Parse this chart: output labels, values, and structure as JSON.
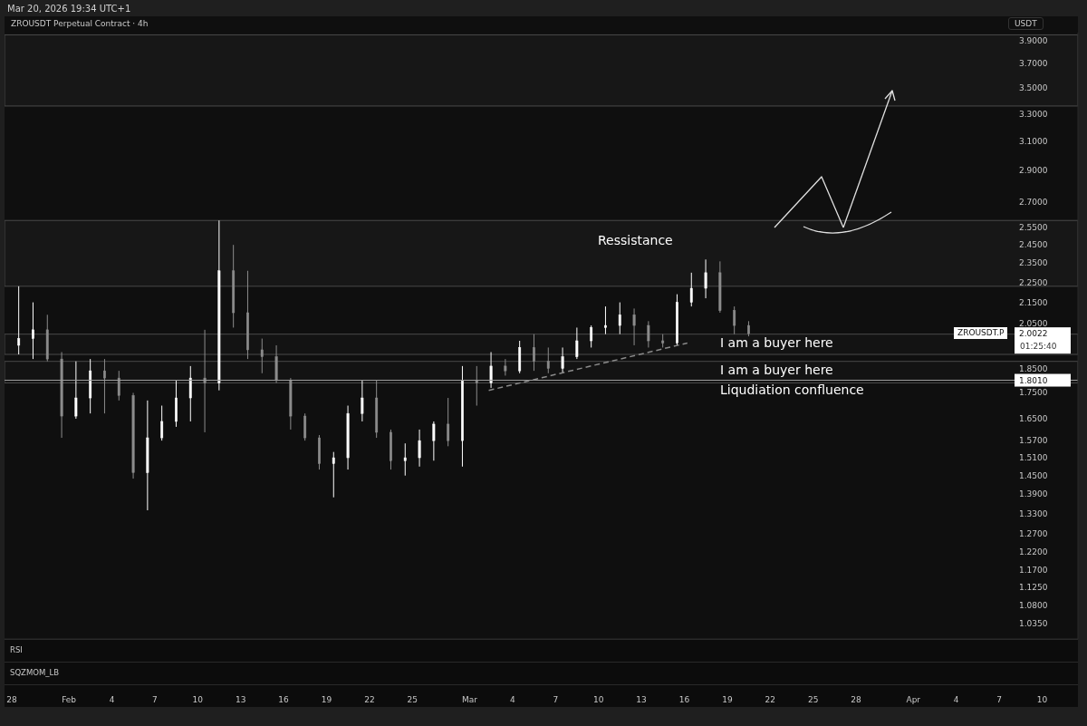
{
  "chart_data": {
    "type": "candlestick",
    "title": "ZROUSDT Perpetual Contract · 4h",
    "subtitle": "Mar 20, 2026 19:34 UTC+1",
    "ylabel": "USDT",
    "log": "y",
    "x": [
      "2026-01-28T12:00",
      "2026-01-29T12:00",
      "2026-01-30T12:00",
      "2026-01-31T12:00",
      "2026-02-01T12:00",
      "2026-02-02T12:00",
      "2026-02-03T12:00",
      "2026-02-04T12:00",
      "2026-02-05T12:00",
      "2026-02-06T12:00",
      "2026-02-07T12:00",
      "2026-02-08T12:00",
      "2026-02-09T12:00",
      "2026-02-10T12:00",
      "2026-02-11T12:00",
      "2026-02-12T12:00",
      "2026-02-13T12:00",
      "2026-02-14T12:00",
      "2026-02-15T12:00",
      "2026-02-16T12:00",
      "2026-02-17T12:00",
      "2026-02-18T12:00",
      "2026-02-19T12:00",
      "2026-02-20T12:00",
      "2026-02-21T12:00",
      "2026-02-22T12:00",
      "2026-02-23T12:00",
      "2026-02-24T12:00",
      "2026-02-25T12:00",
      "2026-02-26T12:00",
      "2026-02-27T12:00",
      "2026-02-28T12:00",
      "2026-03-01T12:00",
      "2026-03-02T12:00",
      "2026-03-03T12:00",
      "2026-03-04T12:00",
      "2026-03-05T12:00",
      "2026-03-06T12:00",
      "2026-03-07T12:00",
      "2026-03-08T12:00",
      "2026-03-09T12:00",
      "2026-03-10T12:00",
      "2026-03-11T12:00",
      "2026-03-12T12:00",
      "2026-03-13T12:00",
      "2026-03-14T12:00",
      "2026-03-15T12:00",
      "2026-03-16T12:00",
      "2026-03-17T12:00",
      "2026-03-18T12:00",
      "2026-03-19T12:00",
      "2026-03-20T12:00"
    ],
    "ohlc": [
      [
        1.95,
        2.23,
        1.91,
        1.98
      ],
      [
        1.98,
        2.15,
        1.89,
        2.02
      ],
      [
        2.02,
        2.09,
        1.88,
        1.89
      ],
      [
        1.89,
        1.92,
        1.58,
        1.66
      ],
      [
        1.66,
        1.88,
        1.65,
        1.73
      ],
      [
        1.73,
        1.89,
        1.67,
        1.84
      ],
      [
        1.84,
        1.89,
        1.67,
        1.81
      ],
      [
        1.81,
        1.84,
        1.72,
        1.74
      ],
      [
        1.74,
        1.75,
        1.44,
        1.46
      ],
      [
        1.46,
        1.72,
        1.34,
        1.58
      ],
      [
        1.58,
        1.7,
        1.57,
        1.64
      ],
      [
        1.64,
        1.8,
        1.62,
        1.73
      ],
      [
        1.73,
        1.86,
        1.64,
        1.81
      ],
      [
        1.81,
        2.02,
        1.6,
        1.79
      ],
      [
        1.79,
        2.59,
        1.76,
        2.31
      ],
      [
        2.31,
        2.45,
        2.03,
        2.1
      ],
      [
        2.1,
        2.31,
        1.89,
        1.93
      ],
      [
        1.93,
        1.98,
        1.83,
        1.9
      ],
      [
        1.9,
        1.95,
        1.79,
        1.8
      ],
      [
        1.8,
        1.81,
        1.61,
        1.66
      ],
      [
        1.66,
        1.67,
        1.57,
        1.58
      ],
      [
        1.58,
        1.59,
        1.47,
        1.49
      ],
      [
        1.49,
        1.53,
        1.38,
        1.51
      ],
      [
        1.51,
        1.7,
        1.47,
        1.67
      ],
      [
        1.67,
        1.8,
        1.64,
        1.73
      ],
      [
        1.73,
        1.8,
        1.58,
        1.6
      ],
      [
        1.6,
        1.61,
        1.47,
        1.5
      ],
      [
        1.5,
        1.56,
        1.45,
        1.51
      ],
      [
        1.51,
        1.61,
        1.48,
        1.57
      ],
      [
        1.57,
        1.64,
        1.5,
        1.63
      ],
      [
        1.63,
        1.73,
        1.55,
        1.57
      ],
      [
        1.57,
        1.86,
        1.48,
        1.8
      ],
      [
        1.8,
        1.86,
        1.7,
        1.79
      ],
      [
        1.79,
        1.92,
        1.77,
        1.86
      ],
      [
        1.86,
        1.89,
        1.82,
        1.84
      ],
      [
        1.84,
        1.97,
        1.83,
        1.94
      ],
      [
        1.94,
        2.0,
        1.84,
        1.88
      ],
      [
        1.88,
        1.94,
        1.83,
        1.85
      ],
      [
        1.85,
        1.94,
        1.83,
        1.9
      ],
      [
        1.9,
        2.03,
        1.89,
        1.97
      ],
      [
        1.97,
        2.04,
        1.94,
        2.03
      ],
      [
        2.03,
        2.13,
        2.0,
        2.04
      ],
      [
        2.04,
        2.15,
        2.0,
        2.09
      ],
      [
        2.09,
        2.12,
        1.95,
        2.04
      ],
      [
        2.04,
        2.06,
        1.94,
        1.97
      ],
      [
        1.97,
        2.0,
        1.94,
        1.96
      ],
      [
        1.96,
        2.19,
        1.95,
        2.15
      ],
      [
        2.15,
        2.3,
        2.13,
        2.22
      ],
      [
        2.22,
        2.37,
        2.17,
        2.3
      ],
      [
        2.3,
        2.36,
        2.1,
        2.11
      ],
      [
        2.11,
        2.13,
        2.0,
        2.04
      ],
      [
        2.04,
        2.06,
        1.99,
        2.0022
      ]
    ],
    "colors": [
      "#ffffff",
      "#ffffff",
      "#8c8c8c",
      "#8c8c8c",
      "#ffffff",
      "#ffffff",
      "#8c8c8c",
      "#8c8c8c",
      "#8c8c8c",
      "#ffffff",
      "#ffffff",
      "#ffffff",
      "#ffffff",
      "#8c8c8c",
      "#ffffff",
      "#8c8c8c",
      "#8c8c8c",
      "#8c8c8c",
      "#8c8c8c",
      "#8c8c8c",
      "#8c8c8c",
      "#8c8c8c",
      "#ffffff",
      "#ffffff",
      "#ffffff",
      "#8c8c8c",
      "#8c8c8c",
      "#ffffff",
      "#ffffff",
      "#ffffff",
      "#8c8c8c",
      "#ffffff",
      "#8c8c8c",
      "#ffffff",
      "#8c8c8c",
      "#ffffff",
      "#8c8c8c",
      "#8c8c8c",
      "#ffffff",
      "#ffffff",
      "#ffffff",
      "#ffffff",
      "#ffffff",
      "#8c8c8c",
      "#8c8c8c",
      "#8c8c8c",
      "#ffffff",
      "#ffffff",
      "#ffffff",
      "#8c8c8c",
      "#8c8c8c",
      "#8c8c8c"
    ],
    "series": [
      {
        "type": "line",
        "x": [
          "2026-03-02T08:00",
          "2026-03-16T05:00"
        ],
        "values": [
          1.76,
          1.96
        ],
        "color": "#8a8a8a",
        "line_style": "dashed"
      }
    ],
    "xlim": [
      "2026-01-27T12:00",
      "2026-04-12T12:00"
    ],
    "xticks": [
      {
        "value": "2026-01-28",
        "label": "28"
      },
      {
        "value": "2026-02-01",
        "label": "Feb"
      },
      {
        "value": "2026-02-04",
        "label": "4"
      },
      {
        "value": "2026-02-07",
        "label": "7"
      },
      {
        "value": "2026-02-10",
        "label": "10"
      },
      {
        "value": "2026-02-13",
        "label": "13"
      },
      {
        "value": "2026-02-16",
        "label": "16"
      },
      {
        "value": "2026-02-19",
        "label": "19"
      },
      {
        "value": "2026-02-22",
        "label": "22"
      },
      {
        "value": "2026-02-25",
        "label": "25"
      },
      {
        "value": "2026-03-01",
        "label": "Mar"
      },
      {
        "value": "2026-03-04",
        "label": "4"
      },
      {
        "value": "2026-03-07",
        "label": "7"
      },
      {
        "value": "2026-03-10",
        "label": "10"
      },
      {
        "value": "2026-03-13",
        "label": "13"
      },
      {
        "value": "2026-03-16",
        "label": "16"
      },
      {
        "value": "2026-03-19",
        "label": "19"
      },
      {
        "value": "2026-03-22",
        "label": "22"
      },
      {
        "value": "2026-03-25",
        "label": "25"
      },
      {
        "value": "2026-03-28",
        "label": "28"
      },
      {
        "value": "2026-04-01",
        "label": "Apr"
      },
      {
        "value": "2026-04-04",
        "label": "4"
      },
      {
        "value": "2026-04-07",
        "label": "7"
      },
      {
        "value": "2026-04-10",
        "label": "10"
      }
    ],
    "ylim": [
      1.0,
      3.97
    ],
    "yticks": [
      {
        "value": 3.9,
        "label": "3.9000"
      },
      {
        "value": 3.7,
        "label": "3.7000"
      },
      {
        "value": 3.5,
        "label": "3.5000"
      },
      {
        "value": 3.3,
        "label": "3.3000"
      },
      {
        "value": 3.1,
        "label": "3.1000"
      },
      {
        "value": 2.9,
        "label": "2.9000"
      },
      {
        "value": 2.7,
        "label": "2.7000"
      },
      {
        "value": 2.55,
        "label": "2.5500"
      },
      {
        "value": 2.45,
        "label": "2.4500"
      },
      {
        "value": 2.35,
        "label": "2.3500"
      },
      {
        "value": 2.25,
        "label": "2.2500"
      },
      {
        "value": 2.15,
        "label": "2.1500"
      },
      {
        "value": 2.05,
        "label": "2.0500"
      },
      {
        "value": 2.0022,
        "label": "2.0022"
      },
      {
        "value": 1.801,
        "label": "1.8010"
      },
      {
        "value": 1.85,
        "label": "1.8500"
      },
      {
        "value": 1.75,
        "label": "1.7500"
      },
      {
        "value": 1.65,
        "label": "1.6500"
      },
      {
        "value": 1.57,
        "label": "1.5700"
      },
      {
        "value": 1.51,
        "label": "1.5100"
      },
      {
        "value": 1.45,
        "label": "1.4500"
      },
      {
        "value": 1.39,
        "label": "1.3900"
      },
      {
        "value": 1.33,
        "label": "1.3300"
      },
      {
        "value": 1.27,
        "label": "1.2700"
      },
      {
        "value": 1.22,
        "label": "1.2200"
      },
      {
        "value": 1.17,
        "label": "1.1700"
      },
      {
        "value": 1.125,
        "label": "1.1250"
      },
      {
        "value": 1.08,
        "label": "1.0800"
      },
      {
        "value": 1.035,
        "label": "1.0350"
      }
    ],
    "bands": [
      {
        "axis": "y",
        "from": 3.36,
        "to": 3.95,
        "color": "#171717"
      },
      {
        "axis": "y",
        "from": 2.23,
        "to": 2.59,
        "color": "#171717"
      },
      {
        "axis": "y",
        "from": 1.91,
        "to": 2.0,
        "label": "I am a buyer here",
        "color": "#131313"
      },
      {
        "axis": "y",
        "from": 1.79,
        "to": 1.88,
        "label": "I am a buyer here",
        "color": "#131313"
      }
    ],
    "ref_lines": [
      {
        "axis": "y",
        "value": 1.801,
        "label": "Liqudiation confluence",
        "color": "#9e9e9e"
      }
    ],
    "annotations": [
      "Ressistance",
      "ZROUSDT.P",
      "01:25:40",
      "RSI",
      "SQZMOM_LB"
    ]
  }
}
